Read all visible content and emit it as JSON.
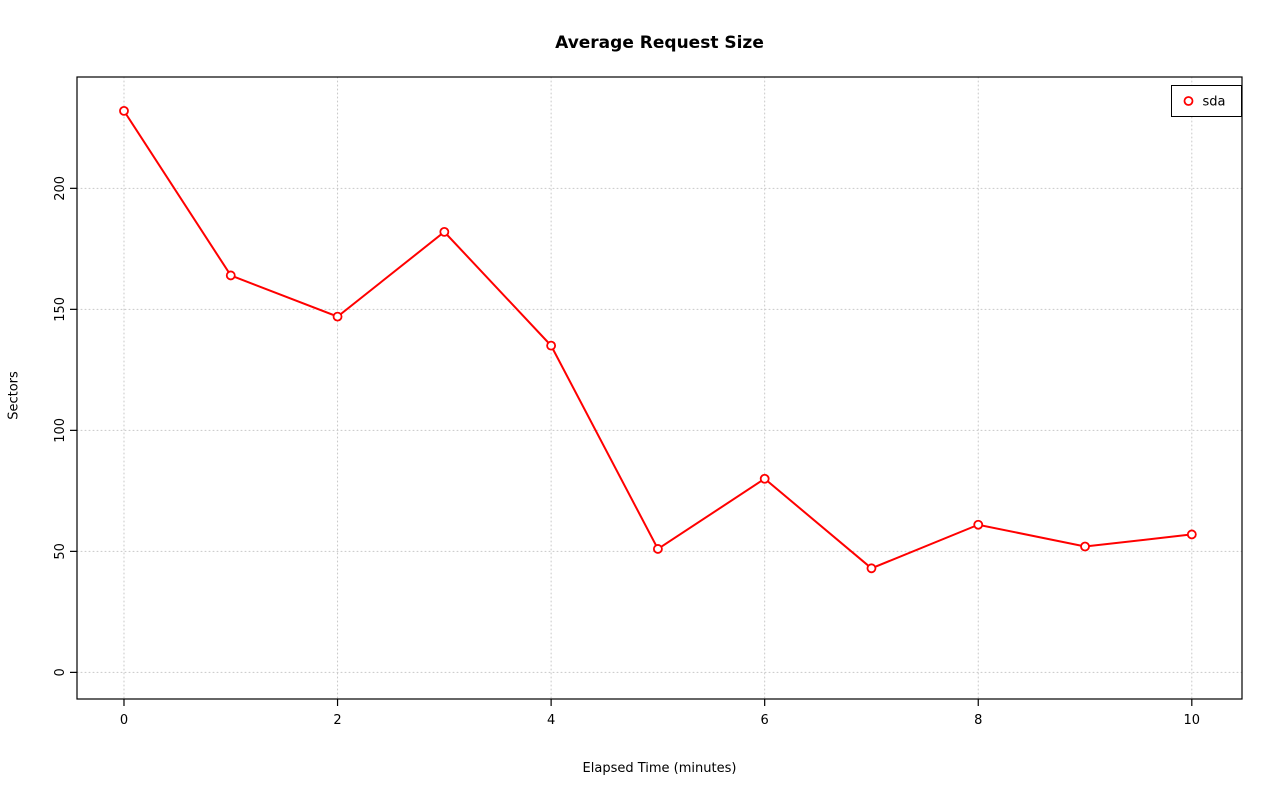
{
  "chart_data": {
    "type": "line",
    "title": "Average Request Size",
    "xlabel": "Elapsed Time (minutes)",
    "ylabel": "Sectors",
    "x": [
      0,
      1,
      2,
      3,
      4,
      5,
      6,
      7,
      8,
      9,
      10
    ],
    "series": [
      {
        "name": "sda",
        "color": "#ff0000",
        "marker": "open-circle",
        "values": [
          232,
          164,
          147,
          182,
          135,
          51,
          80,
          43,
          61,
          52,
          57
        ]
      }
    ],
    "xticks": [
      0,
      2,
      4,
      6,
      8,
      10
    ],
    "yticks": [
      0,
      50,
      100,
      150,
      200
    ],
    "xlim": [
      -0.44,
      10.47
    ],
    "ylim": [
      -11,
      246
    ],
    "grid": true,
    "legend_position": "top-right"
  }
}
